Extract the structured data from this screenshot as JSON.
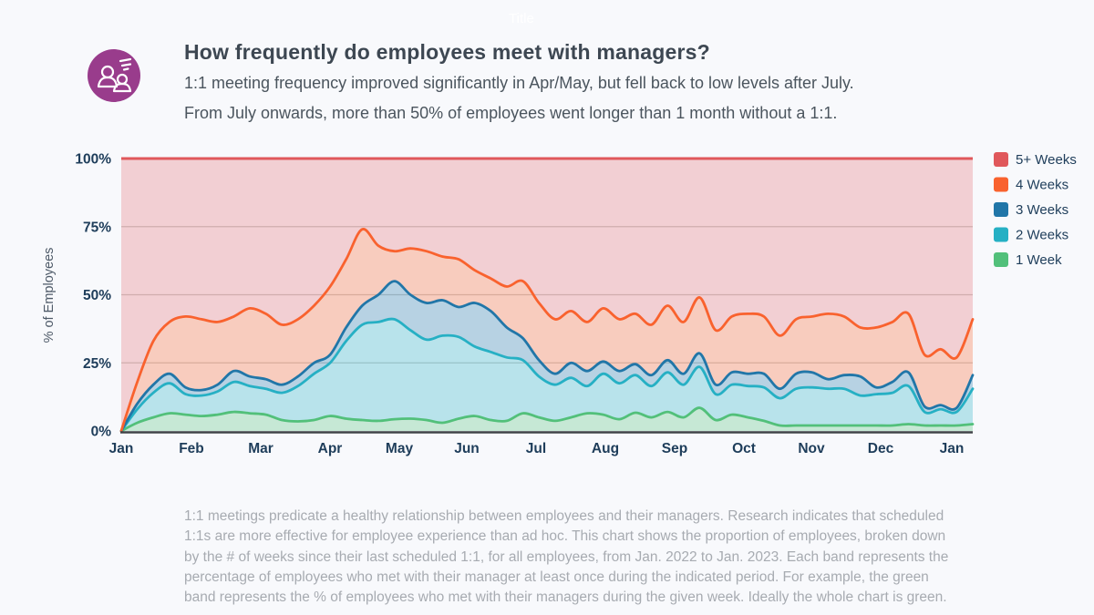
{
  "page": {
    "faint_title": "Title",
    "background_color": "#f8f9fc"
  },
  "header": {
    "icon": "one-on-one-meeting-icon",
    "icon_color": "#993c8c",
    "title": "How frequently do employees meet with managers?",
    "subtitle_line1": "1:1 meeting frequency improved significantly in Apr/May, but fell back to low levels after July.",
    "subtitle_line2": "From July onwards, more than 50% of employees went longer than 1 month without a 1:1."
  },
  "footer": {
    "text": "1:1 meetings predicate a healthy relationship between employees and their managers. Research indicates that scheduled 1:1s are more effective for employee experience than ad hoc. This chart shows the proportion of employees, broken down by the # of weeks since their last scheduled 1:1, for all employees, from Jan. 2022 to Jan. 2023. Each band represents the percentage of employees who met with their manager at least once during the indicated period. For example, the green band represents the % of employees who met with their managers during the given week. Ideally the whole chart is green."
  },
  "chart_data": {
    "type": "area",
    "stacked": true,
    "title": "",
    "xlabel": "",
    "ylabel": "% of Employees",
    "x_tick_labels": [
      "Jan",
      "Feb",
      "Mar",
      "Apr",
      "May",
      "Jun",
      "Jul",
      "Aug",
      "Sep",
      "Oct",
      "Nov",
      "Dec",
      "Jan"
    ],
    "x_range_note": "weekly data from Jan. 2022 to Jan. 2023, 54 points",
    "y_tick_labels": [
      "0%",
      "25%",
      "50%",
      "75%",
      "100%"
    ],
    "ylim": [
      0,
      100
    ],
    "grid": "horizontal",
    "legend_position": "right",
    "legend": [
      {
        "label": "5+ Weeks",
        "color": "#e0585b"
      },
      {
        "label": "4 Weeks",
        "color": "#f9622e"
      },
      {
        "label": "3 Weeks",
        "color": "#2176a8"
      },
      {
        "label": "2 Weeks",
        "color": "#26b0c4"
      },
      {
        "label": "1 Week",
        "color": "#52c07a"
      }
    ],
    "series_note": "values are cumulative band tops in % of employees (met within N weeks); the 5+ Weeks band fills from the 4 Weeks curve up to 100%",
    "series": [
      {
        "name": "1 Week",
        "color": "#52c07a",
        "cumulative_values": [
          0,
          3,
          5,
          6.5,
          6,
          5.5,
          6,
          7,
          6.5,
          6,
          4,
          3.5,
          4,
          5.5,
          4.5,
          4,
          3.7,
          4.3,
          4.5,
          4,
          3,
          4.5,
          5.5,
          4,
          3.7,
          6.5,
          5,
          3.7,
          5,
          6.5,
          6,
          4.3,
          6.7,
          5,
          7,
          5,
          8.5,
          4,
          6,
          5,
          3.7,
          2,
          2,
          2,
          2,
          2,
          2,
          2,
          2,
          2.5,
          2,
          2,
          2,
          2.5
        ]
      },
      {
        "name": "2 Weeks",
        "color": "#26b0c4",
        "cumulative_values": [
          0,
          8,
          14,
          17.5,
          13.5,
          13,
          14.5,
          18,
          16.5,
          15.5,
          14,
          16.5,
          21,
          25,
          33,
          39,
          40,
          41,
          37,
          33.5,
          35,
          34.5,
          31,
          29,
          27,
          26,
          20,
          17,
          19.5,
          16.5,
          21,
          17.5,
          20.5,
          16.5,
          21.5,
          17,
          23.5,
          13.5,
          17,
          16.5,
          16,
          12,
          15.5,
          16,
          15.5,
          15.5,
          13,
          13.5,
          14,
          16.5,
          7,
          8,
          7,
          15.5
        ]
      },
      {
        "name": "3 Weeks",
        "color": "#2176a8",
        "cumulative_values": [
          0,
          10,
          17,
          21,
          16,
          15,
          17,
          22,
          20,
          19,
          17,
          20,
          25,
          28,
          38,
          46,
          50,
          55,
          50,
          47,
          48,
          45.5,
          47,
          44,
          38,
          34,
          26,
          21,
          25,
          22,
          25.5,
          22,
          24.5,
          20.5,
          26,
          21,
          28.5,
          17,
          21.5,
          21,
          21,
          15.5,
          21,
          21.5,
          19,
          20.5,
          20,
          16,
          18,
          21.5,
          9,
          9.5,
          8.5,
          20.5
        ]
      },
      {
        "name": "4 Weeks",
        "color": "#f9622e",
        "cumulative_values": [
          0,
          18,
          33,
          40,
          42,
          41,
          40,
          42,
          45,
          43,
          39,
          41,
          46,
          53,
          63,
          74,
          68,
          66,
          67,
          66,
          64,
          63,
          59,
          56,
          53,
          55,
          47,
          41,
          44,
          40,
          45,
          41,
          43,
          39,
          46,
          40,
          49,
          37,
          42,
          43,
          42,
          35,
          41,
          42,
          43,
          42,
          38,
          38,
          40,
          43,
          28,
          30,
          27,
          41
        ]
      },
      {
        "name": "5+ Weeks",
        "color": "#e0585b",
        "fills_to": 100
      }
    ]
  }
}
